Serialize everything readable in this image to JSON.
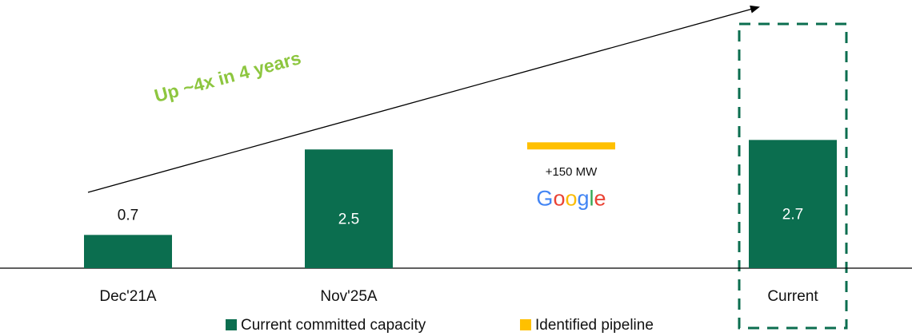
{
  "chart_data": {
    "type": "bar",
    "annotation": "Up ~4x in 4 years",
    "categories": [
      "Dec'21A",
      "Nov'25A",
      null,
      "Current"
    ],
    "series": [
      {
        "name": "Current committed capacity",
        "color": "#0b6e4f",
        "values": [
          0.7,
          2.5,
          null,
          2.7
        ],
        "value_labels": [
          "0.7",
          "2.5",
          null,
          "2.7"
        ]
      },
      {
        "name": "Identified pipeline",
        "color": "#ffc000",
        "values": [
          null,
          null,
          0.15,
          null
        ],
        "value_labels": [
          null,
          null,
          "+150 MW",
          null
        ]
      }
    ],
    "logo_text": "Google",
    "ylim": [
      0,
      5
    ]
  }
}
